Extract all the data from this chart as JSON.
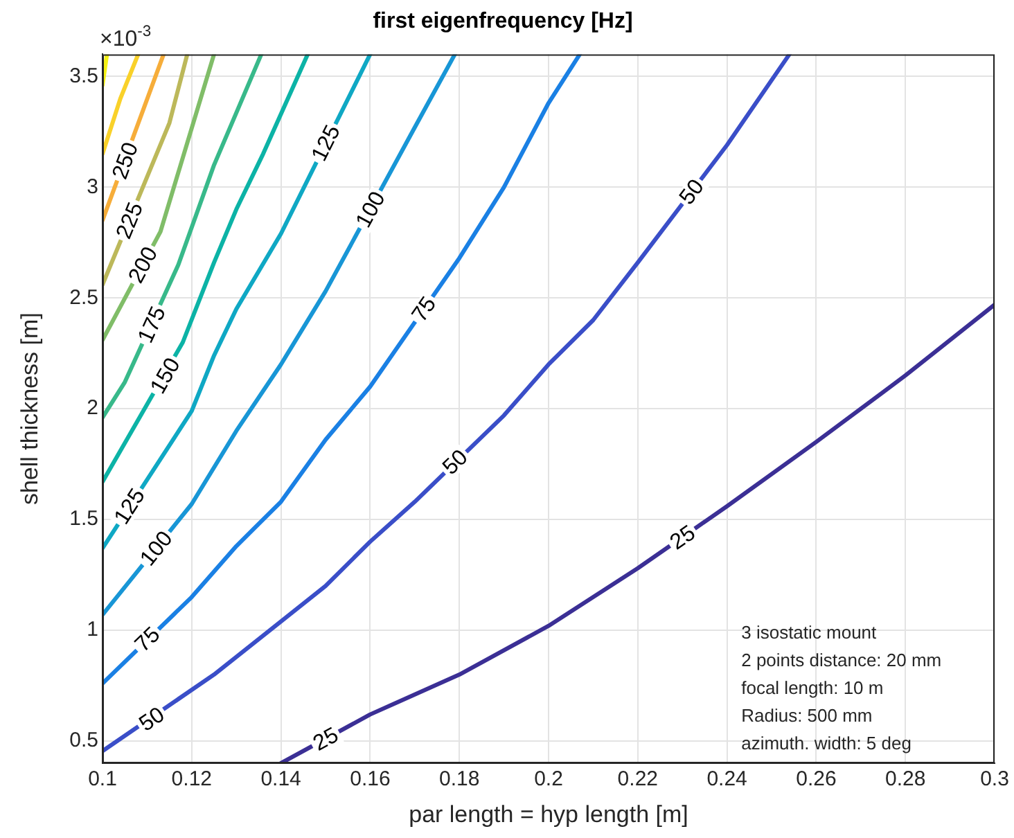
{
  "chart_data": {
    "type": "line",
    "title": "first eigenfrequency [Hz]",
    "xlabel": "par length = hyp length [m]",
    "ylabel": "shell thickness [m]",
    "xlim": [
      0.1,
      0.3
    ],
    "xticks": [
      0.1,
      0.12,
      0.14,
      0.16,
      0.18,
      0.2,
      0.22,
      0.24,
      0.26,
      0.28,
      0.3
    ],
    "ylim": [
      0.4,
      3.6
    ],
    "yticks": [
      0.5,
      1,
      1.5,
      2,
      2.5,
      3,
      3.5
    ],
    "grid": true,
    "series": [
      {
        "color": "#3b2f95",
        "x": [
          0.14,
          0.16,
          0.18,
          0.2,
          0.22,
          0.24,
          0.26,
          0.28,
          0.3
        ],
        "values": [
          0.4,
          0.62,
          0.8,
          1.02,
          1.28,
          1.56,
          1.85,
          2.15,
          2.47
        ]
      },
      {
        "color": "#3a4ec8",
        "x": [
          0.1,
          0.125,
          0.14,
          0.15,
          0.16,
          0.17,
          0.19,
          0.2,
          0.21,
          0.22,
          0.24,
          0.254
        ],
        "values": [
          0.455,
          0.8,
          1.04,
          1.2,
          1.4,
          1.58,
          1.97,
          2.2,
          2.4,
          2.66,
          3.19,
          3.6
        ]
      },
      {
        "color": "#1a80e4",
        "x": [
          0.1,
          0.12,
          0.13,
          0.14,
          0.15,
          0.16,
          0.18,
          0.19,
          0.2,
          0.207
        ],
        "values": [
          0.76,
          1.15,
          1.38,
          1.58,
          1.86,
          2.1,
          2.68,
          3.0,
          3.38,
          3.6
        ]
      },
      {
        "color": "#1896d6",
        "x": [
          0.1,
          0.12,
          0.13,
          0.14,
          0.15,
          0.17,
          0.179
        ],
        "values": [
          1.07,
          1.57,
          1.9,
          2.2,
          2.53,
          3.27,
          3.6
        ]
      },
      {
        "color": "#0fa8c4",
        "x": [
          0.1,
          0.12,
          0.125,
          0.13,
          0.14,
          0.16
        ],
        "values": [
          1.37,
          1.99,
          2.24,
          2.45,
          2.79,
          3.6
        ]
      },
      {
        "color": "#0cb3a6",
        "x": [
          0.1,
          0.118,
          0.125,
          0.13,
          0.136,
          0.146
        ],
        "values": [
          1.67,
          2.3,
          2.66,
          2.9,
          3.15,
          3.6
        ]
      },
      {
        "color": "#38b98a",
        "x": [
          0.1,
          0.105,
          0.117,
          0.125,
          0.1356
        ],
        "values": [
          1.96,
          2.12,
          2.65,
          3.1,
          3.6
        ]
      },
      {
        "color": "#80bd68",
        "x": [
          0.1,
          0.113,
          0.119,
          0.125
        ],
        "values": [
          2.31,
          2.8,
          3.2,
          3.6
        ]
      },
      {
        "color": "#bcb85a",
        "x": [
          0.1,
          0.115,
          0.119
        ],
        "values": [
          2.56,
          3.29,
          3.6
        ]
      },
      {
        "color": "#f6ad3a",
        "x": [
          0.1,
          0.1137
        ],
        "values": [
          2.85,
          3.6
        ]
      },
      {
        "color": "#f9d12a",
        "x": [
          0.1,
          0.104,
          0.108
        ],
        "values": [
          3.15,
          3.4,
          3.6
        ]
      },
      {
        "color": "#f5f215",
        "x": [
          0.1,
          0.101
        ],
        "values": [
          3.46,
          3.6
        ]
      }
    ],
    "annotations": [
      "×10$^{-3}$",
      "3 isostatic mount",
      "2 points distance: 20 mm",
      "focal length: 10 m",
      "Radius: 500 mm",
      "azimuth. width: 5 deg",
      {
        "text": "25",
        "x": 0.15,
        "y": 0.51
      },
      {
        "text": "25",
        "x": 0.23,
        "y": 1.42
      },
      {
        "text": "50",
        "x": 0.111,
        "y": 0.6
      },
      {
        "text": "50",
        "x": 0.179,
        "y": 1.76
      },
      {
        "text": "50",
        "x": 0.232,
        "y": 2.98
      },
      {
        "text": "75",
        "x": 0.11,
        "y": 0.96
      },
      {
        "text": "75",
        "x": 0.172,
        "y": 2.45
      },
      {
        "text": "100",
        "x": 0.112,
        "y": 1.37
      },
      {
        "text": "100",
        "x": 0.16,
        "y": 2.9
      },
      {
        "text": "125",
        "x": 0.106,
        "y": 1.56
      },
      {
        "text": "125",
        "x": 0.15,
        "y": 3.2
      },
      {
        "text": "150",
        "x": 0.114,
        "y": 2.15
      },
      {
        "text": "175",
        "x": 0.111,
        "y": 2.38
      },
      {
        "text": "200",
        "x": 0.109,
        "y": 2.65
      },
      {
        "text": "225",
        "x": 0.106,
        "y": 2.85
      },
      {
        "text": "250",
        "x": 0.105,
        "y": 3.12
      }
    ]
  }
}
